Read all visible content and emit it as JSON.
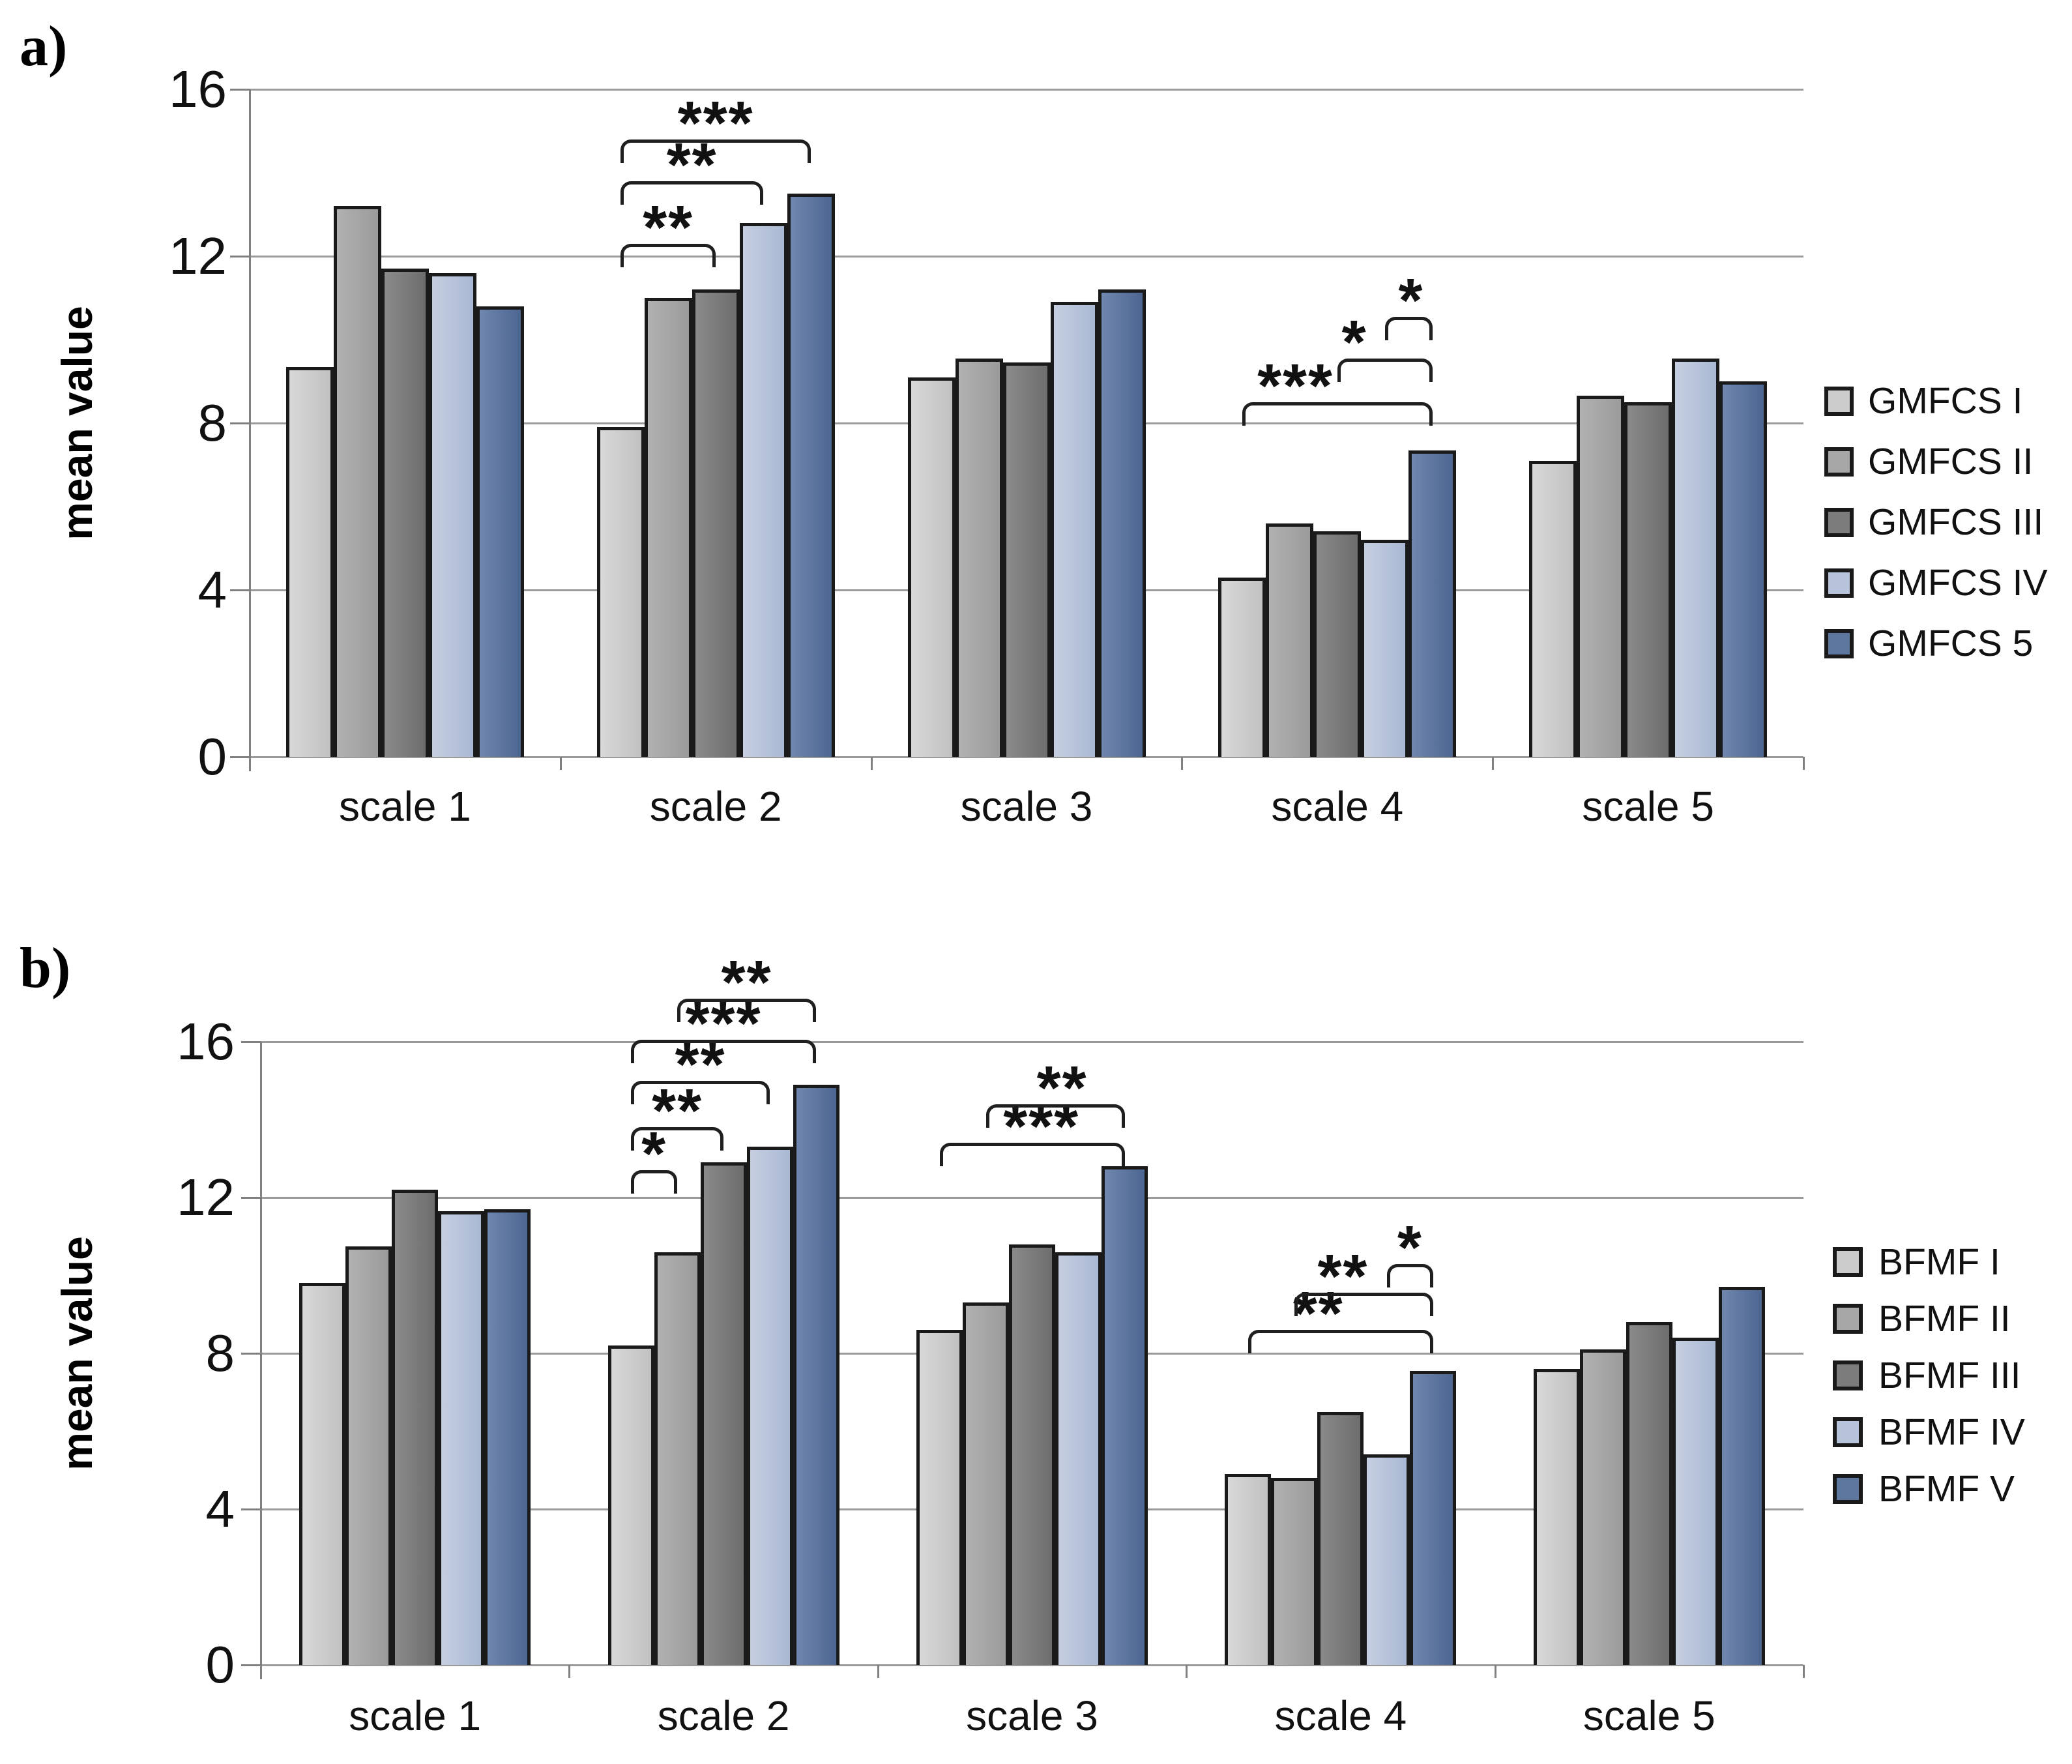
{
  "colors": {
    "background": "#ffffff",
    "text": "#111111",
    "gridline": "#9a9a9a",
    "axis": "#808080",
    "bar_border": "#1a1a1a",
    "bracket": "#1f1f1f",
    "series_fill_left": [
      "#d8d8d8",
      "#b1b1b1",
      "#8a8a8a",
      "#c6cfe1",
      "#7087ae"
    ],
    "series_fill_right": [
      "#c1c1c1",
      "#9b9b9b",
      "#6d6d6d",
      "#a9b8d3",
      "#4c6692"
    ],
    "series_legend": [
      "#cccccc",
      "#a7a7a7",
      "#7c7c7c",
      "#b7c3da",
      "#5e779f"
    ]
  },
  "chart_data": [
    {
      "type": "bar",
      "panel_label": "a)",
      "title": "",
      "xlabel": "",
      "ylabel": "mean value",
      "ylim": [
        0,
        16
      ],
      "yticks": [
        16,
        12,
        8,
        4,
        0
      ],
      "grid": true,
      "legend_position": "right",
      "categories": [
        "scale 1",
        "scale 2",
        "scale 3",
        "scale 4",
        "scale 5"
      ],
      "series": [
        {
          "name": "GMFCS I",
          "values": [
            9.35,
            7.9,
            9.1,
            4.3,
            7.1
          ]
        },
        {
          "name": "GMFCS II",
          "values": [
            13.2,
            11.0,
            9.55,
            5.6,
            8.65
          ]
        },
        {
          "name": "GMFCS III",
          "values": [
            11.7,
            11.2,
            9.45,
            5.4,
            8.5
          ]
        },
        {
          "name": "GMFCS IV",
          "values": [
            11.6,
            12.8,
            10.9,
            5.2,
            9.55
          ]
        },
        {
          "name": "GMFCS 5",
          "values": [
            10.8,
            13.5,
            11.2,
            7.35,
            9.0
          ]
        }
      ],
      "significance_brackets": [
        {
          "category_index": 1,
          "from_series": 0,
          "to_series": 2,
          "label": "**",
          "level": 12.3,
          "label_x": 0.5
        },
        {
          "category_index": 1,
          "from_series": 0,
          "to_series": 3,
          "label": "**",
          "level": 13.8,
          "label_x": 0.5
        },
        {
          "category_index": 1,
          "from_series": 0,
          "to_series": 4,
          "label": "***",
          "level": 14.8,
          "label_x": 0.5
        },
        {
          "category_index": 3,
          "from_series": 0,
          "to_series": 4,
          "label": "***",
          "level": 8.5,
          "label_x": 0.28
        },
        {
          "category_index": 3,
          "from_series": 2,
          "to_series": 4,
          "label": "*",
          "level": 9.55,
          "label_x": 0.18
        },
        {
          "category_index": 3,
          "from_series": 3,
          "to_series": 4,
          "label": "*",
          "level": 10.55,
          "label_x": 0.55
        }
      ]
    },
    {
      "type": "bar",
      "panel_label": "b)",
      "title": "",
      "xlabel": "",
      "ylabel": "mean value",
      "ylim": [
        0,
        16
      ],
      "yticks": [
        16,
        12,
        8,
        4,
        0
      ],
      "grid": true,
      "legend_position": "right",
      "categories": [
        "scale 1",
        "scale 2",
        "scale 3",
        "scale 4",
        "scale 5"
      ],
      "series": [
        {
          "name": "BFMF I",
          "values": [
            9.8,
            8.2,
            8.6,
            4.9,
            7.6
          ]
        },
        {
          "name": "BFMF II",
          "values": [
            10.75,
            10.6,
            9.3,
            4.8,
            8.1
          ]
        },
        {
          "name": "BFMF III",
          "values": [
            12.2,
            12.9,
            10.8,
            6.5,
            8.8
          ]
        },
        {
          "name": "BFMF IV",
          "values": [
            11.65,
            13.3,
            10.6,
            5.4,
            8.4
          ]
        },
        {
          "name": "BFMF V",
          "values": [
            11.7,
            14.9,
            12.8,
            7.55,
            9.7
          ]
        }
      ],
      "significance_brackets": [
        {
          "category_index": 1,
          "from_series": 0,
          "to_series": 1,
          "label": "*",
          "level": 12.7,
          "label_x": 0.5
        },
        {
          "category_index": 1,
          "from_series": 0,
          "to_series": 2,
          "label": "**",
          "level": 13.8,
          "label_x": 0.5
        },
        {
          "category_index": 1,
          "from_series": 0,
          "to_series": 3,
          "label": "**",
          "level": 15.0,
          "label_x": 0.5
        },
        {
          "category_index": 1,
          "from_series": 0,
          "to_series": 4,
          "label": "***",
          "level": 16.05,
          "label_x": 0.5
        },
        {
          "category_index": 1,
          "from_series": 1,
          "to_series": 4,
          "label": "**",
          "level": 17.1,
          "label_x": 0.5
        },
        {
          "category_index": 2,
          "from_series": 0,
          "to_series": 4,
          "label": "***",
          "level": 13.4,
          "label_x": 0.55
        },
        {
          "category_index": 2,
          "from_series": 1,
          "to_series": 4,
          "label": "**",
          "level": 14.4,
          "label_x": 0.55
        },
        {
          "category_index": 3,
          "from_series": 0,
          "to_series": 4,
          "label": "**",
          "level": 8.6,
          "label_x": 0.38
        },
        {
          "category_index": 3,
          "from_series": 1,
          "to_series": 4,
          "label": "**",
          "level": 9.55,
          "label_x": 0.35
        },
        {
          "category_index": 3,
          "from_series": 3,
          "to_series": 4,
          "label": "*",
          "level": 10.3,
          "label_x": 0.5
        }
      ]
    }
  ]
}
